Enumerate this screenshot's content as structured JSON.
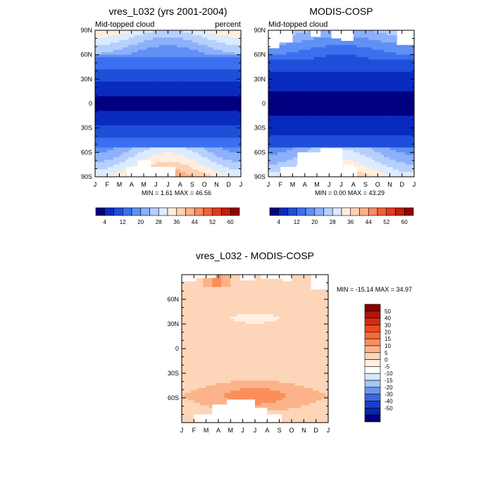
{
  "chart_data": [
    {
      "type": "heatmap",
      "title": "vres_L032 (yrs 2001-2004)",
      "left_label": "Mid-topped cloud",
      "right_label": "percent",
      "stats": "MIN =   1.61 MAX =  46.56",
      "x_ticks": [
        "J",
        "F",
        "M",
        "A",
        "M",
        "J",
        "J",
        "A",
        "S",
        "O",
        "N",
        "D",
        "J"
      ],
      "y_ticks": [
        "90N",
        "60N",
        "30N",
        "0",
        "30S",
        "60S",
        "90S"
      ],
      "ylim": [
        -90,
        90
      ],
      "colorbar_labels": [
        "4",
        "12",
        "20",
        "28",
        "36",
        "44",
        "52",
        "60"
      ],
      "colorbar_colors": [
        "#000080",
        "#0a2bbf",
        "#1e4fd9",
        "#3a70f0",
        "#5f90f5",
        "#8cb0fa",
        "#b5d0fc",
        "#dcebfe",
        "#ffeedd",
        "#fdd2b3",
        "#fbb18a",
        "#f88a5f",
        "#f0603a",
        "#e03c1e",
        "#c01e0a",
        "#960000"
      ]
    },
    {
      "type": "heatmap",
      "title": "MODIS-COSP",
      "left_label": "Mid-topped cloud",
      "stats": "MIN =   0.00 MAX =  43.29",
      "x_ticks": [
        "J",
        "F",
        "M",
        "A",
        "M",
        "J",
        "J",
        "A",
        "S",
        "O",
        "N",
        "D",
        "J"
      ],
      "y_ticks": [
        "90N",
        "60N",
        "30N",
        "0",
        "30S",
        "60S",
        "90S"
      ],
      "ylim": [
        -90,
        90
      ],
      "colorbar_labels": [
        "4",
        "12",
        "20",
        "28",
        "36",
        "44",
        "52",
        "60"
      ],
      "colorbar_colors": [
        "#000080",
        "#0a2bbf",
        "#1e4fd9",
        "#3a70f0",
        "#5f90f5",
        "#8cb0fa",
        "#b5d0fc",
        "#dcebfe",
        "#ffeedd",
        "#fdd2b3",
        "#fbb18a",
        "#f88a5f",
        "#f0603a",
        "#e03c1e",
        "#c01e0a",
        "#960000"
      ]
    },
    {
      "type": "heatmap",
      "title": "vres_L032 - MODIS-COSP",
      "stats": "MIN = -15.14 MAX =  34.97",
      "x_ticks": [
        "J",
        "F",
        "M",
        "A",
        "M",
        "J",
        "J",
        "A",
        "S",
        "O",
        "N",
        "D",
        "J"
      ],
      "y_ticks": [
        "60N",
        "30N",
        "0",
        "30S",
        "60S"
      ],
      "ylim": [
        -90,
        90
      ],
      "colorbar_labels": [
        "50",
        "40",
        "30",
        "20",
        "15",
        "10",
        "5",
        "0",
        "-5",
        "-10",
        "-15",
        "-20",
        "-30",
        "-40",
        "-50"
      ],
      "colorbar_colors": [
        "#8b0000",
        "#b5120c",
        "#d42a10",
        "#ec4a1c",
        "#f86c34",
        "#fb8f5c",
        "#fcb38a",
        "#fdd5b8",
        "#fff0e2",
        "#ffffff",
        "#d7e8fb",
        "#a7c6f7",
        "#6a97ef",
        "#3a67e4",
        "#173fc9",
        "#0a24a8",
        "#000080"
      ]
    }
  ]
}
